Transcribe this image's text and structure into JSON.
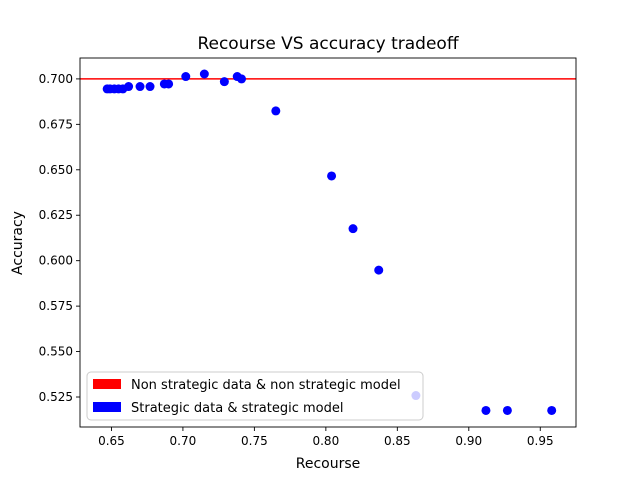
{
  "chart_data": {
    "type": "scatter",
    "title": "Recourse VS accuracy tradeoff",
    "xlabel": "Recourse",
    "ylabel": "Accuracy",
    "xlim": [
      0.628,
      0.975
    ],
    "ylim": [
      0.5085,
      0.7115
    ],
    "xticks": [
      0.65,
      0.7,
      0.75,
      0.8,
      0.85,
      0.9,
      0.95
    ],
    "xtick_labels": [
      "0.65",
      "0.70",
      "0.75",
      "0.80",
      "0.85",
      "0.90",
      "0.95"
    ],
    "yticks": [
      0.525,
      0.55,
      0.575,
      0.6,
      0.625,
      0.65,
      0.675,
      0.7
    ],
    "ytick_labels": [
      "0.525",
      "0.550",
      "0.575",
      "0.600",
      "0.625",
      "0.650",
      "0.675",
      "0.700"
    ],
    "grid": false,
    "legend_position": "bottom-left",
    "reference_line": {
      "name": "Non strategic data & non strategic model",
      "y": 0.7,
      "color": "#ff0000"
    },
    "series": [
      {
        "name": "Strategic data & strategic model",
        "color": "#0000ff",
        "points": [
          [
            0.647,
            0.6945
          ],
          [
            0.649,
            0.6945
          ],
          [
            0.652,
            0.6945
          ],
          [
            0.655,
            0.6945
          ],
          [
            0.658,
            0.6945
          ],
          [
            0.662,
            0.6958
          ],
          [
            0.67,
            0.6958
          ],
          [
            0.677,
            0.6958
          ],
          [
            0.687,
            0.6972
          ],
          [
            0.69,
            0.6972
          ],
          [
            0.702,
            0.7013
          ],
          [
            0.715,
            0.7027
          ],
          [
            0.729,
            0.6985
          ],
          [
            0.738,
            0.7013
          ],
          [
            0.741,
            0.7
          ],
          [
            0.765,
            0.6824
          ],
          [
            0.804,
            0.6466
          ],
          [
            0.819,
            0.6176
          ],
          [
            0.837,
            0.5948
          ],
          [
            0.863,
            0.5258
          ],
          [
            0.912,
            0.5176
          ],
          [
            0.927,
            0.5176
          ],
          [
            0.958,
            0.5176
          ]
        ]
      }
    ]
  }
}
